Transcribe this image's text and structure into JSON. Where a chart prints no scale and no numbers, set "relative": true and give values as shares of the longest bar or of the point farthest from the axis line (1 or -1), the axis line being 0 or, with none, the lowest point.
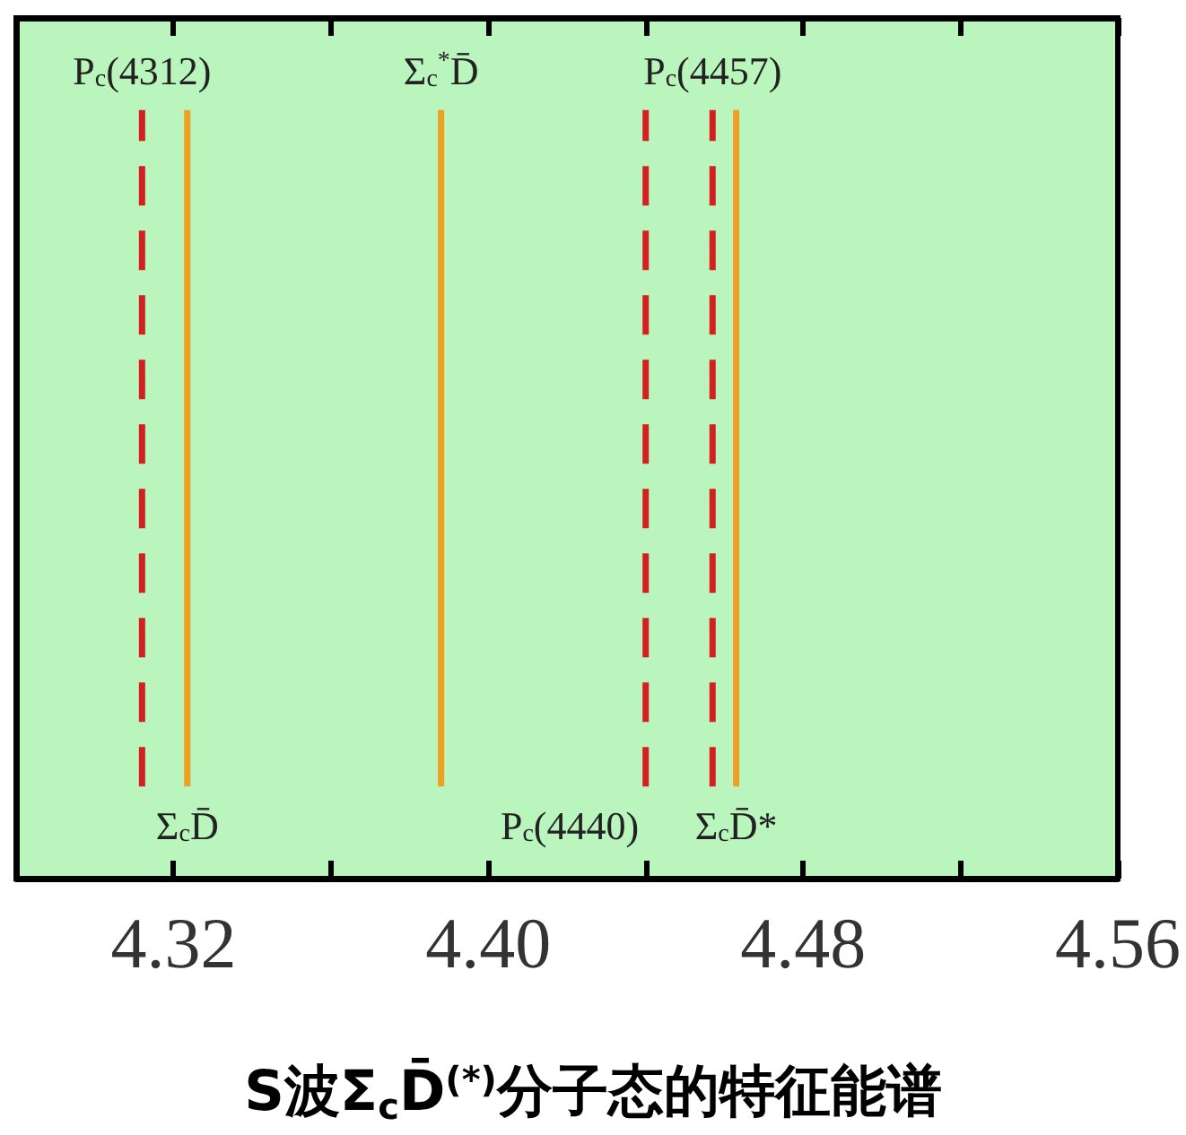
{
  "chart_data": {
    "type": "line",
    "title": "S波Σ$_{c}$D̄$^{(*)}$分子态的特征能谱",
    "xlim": [
      4.28,
      4.56
    ],
    "relative": true,
    "xticks": [
      4.32,
      {
        "value": 4.36,
        "label": null
      },
      "4.40",
      {
        "value": 4.44,
        "label": null
      },
      4.48,
      {
        "value": 4.52,
        "label": null
      },
      4.56
    ],
    "tick_labels": "x",
    "grid": false,
    "legend": false,
    "marker": "none",
    "series": [
      {
        "name": "P$_{c}$(4312)",
        "color": "#d42020",
        "line_style": "dashed",
        "x": [
          4.312,
          4.312
        ],
        "values": [
          0.12,
          1
        ]
      },
      {
        "name": "Σ$_{c}$D̄",
        "color": "#f0a020",
        "line_style": "solid",
        "x": [
          4.3235,
          4.3235
        ],
        "values": [
          0.12,
          1
        ]
      },
      {
        "name": "Σ$_{c}$$^{*}$D̄",
        "color": "#f0a020",
        "line_style": "solid",
        "x": [
          4.388,
          4.388
        ],
        "values": [
          0.12,
          1
        ]
      },
      {
        "name": "P$_{c}$(4440)",
        "color": "#d42020",
        "line_style": "dashed",
        "x": [
          4.44,
          4.44
        ],
        "values": [
          0.12,
          1
        ]
      },
      {
        "name": "P$_{c}$(4457)",
        "color": "#d42020",
        "line_style": "dashed",
        "x": [
          4.457,
          4.457
        ],
        "values": [
          0.12,
          1
        ]
      },
      {
        "name": "Σ$_{c}$D̄*",
        "color": "#f0a020",
        "line_style": "solid",
        "x": [
          4.463,
          4.463
        ],
        "values": [
          0.12,
          1
        ]
      }
    ]
  }
}
